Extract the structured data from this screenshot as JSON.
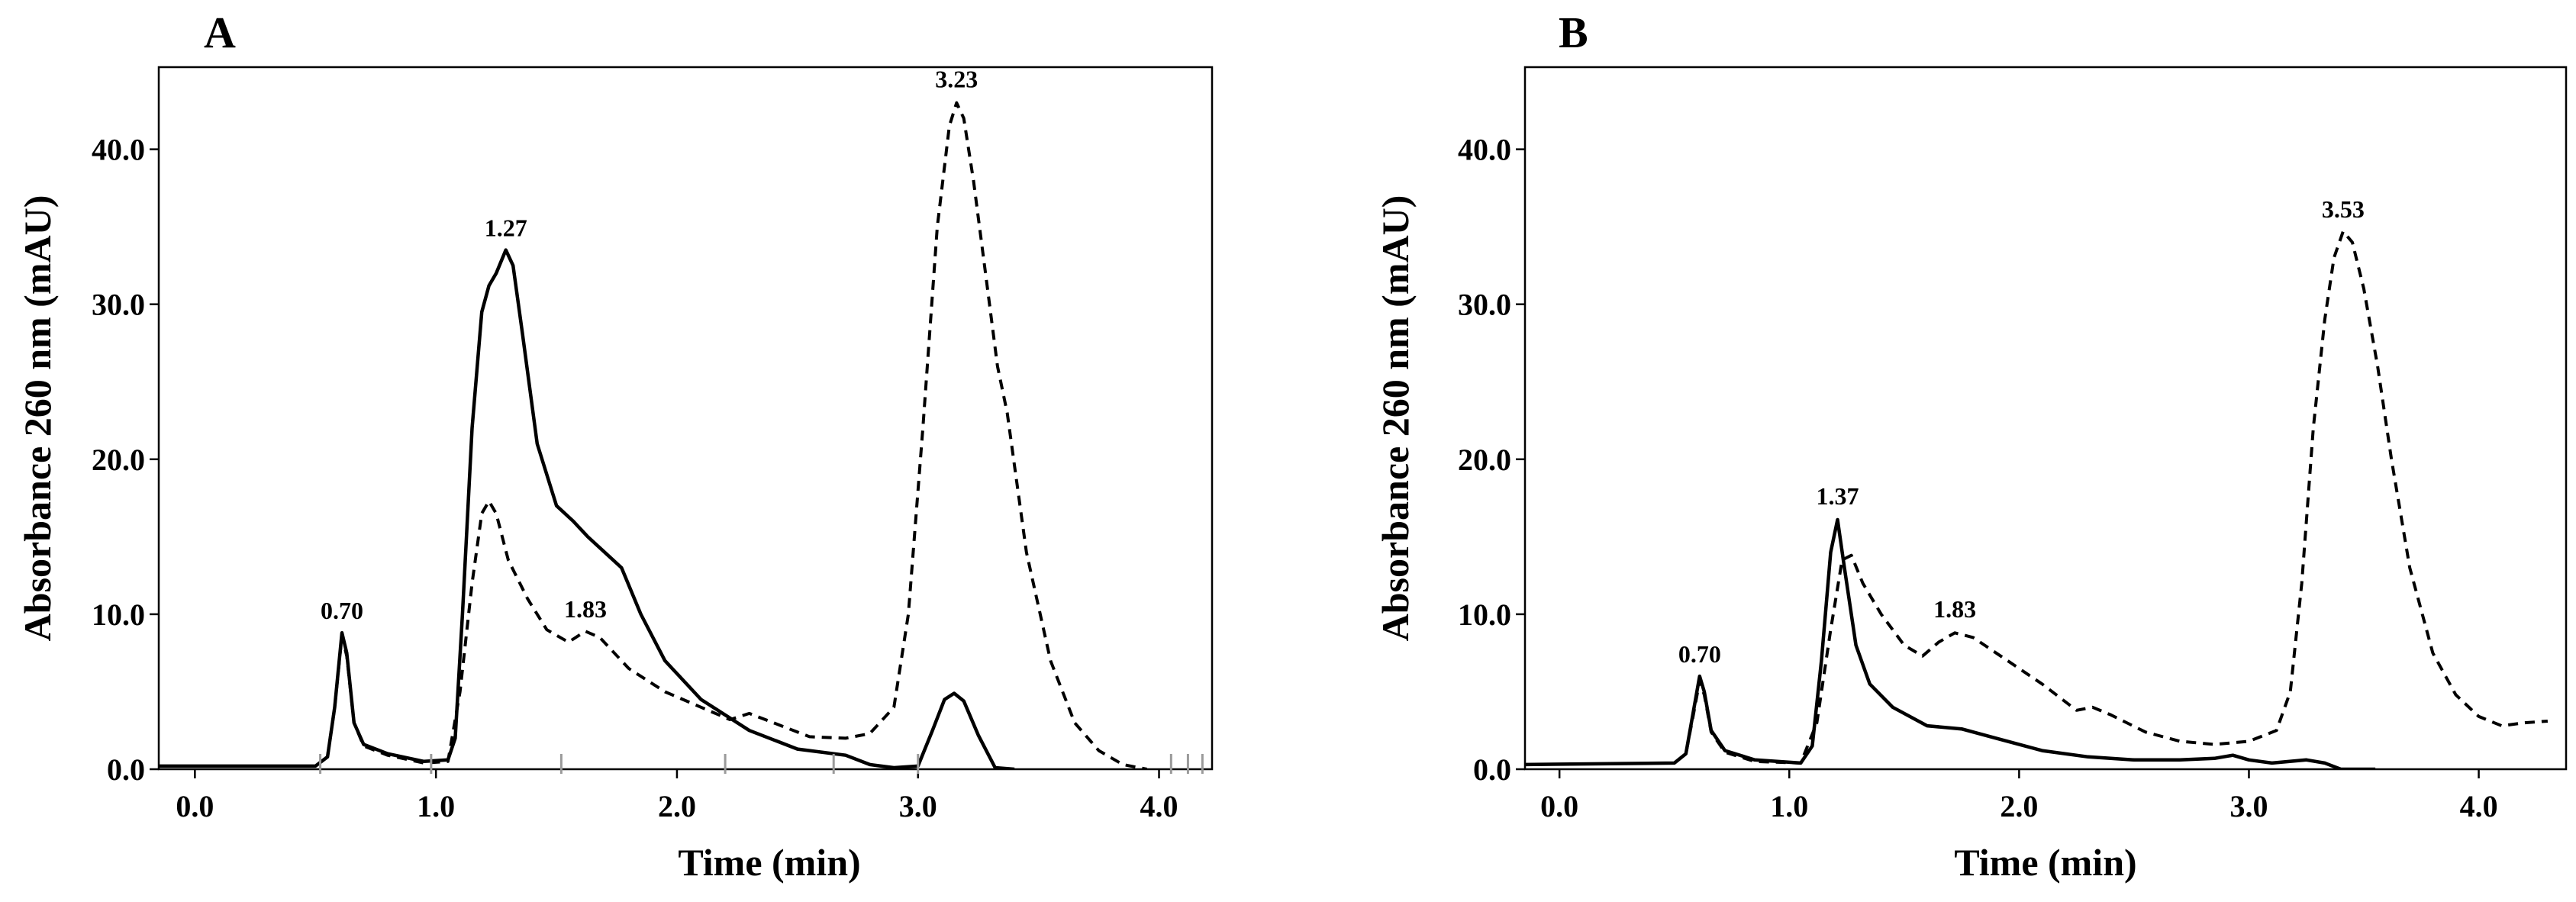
{
  "chart_data": [
    {
      "panel": "A",
      "type": "line",
      "xlabel": "Time (min)",
      "ylabel": "Absorbance 260 nm (mAU)",
      "xlim": [
        -0.15,
        4.22
      ],
      "ylim": [
        0,
        45.3
      ],
      "x_ticks": [
        "0.0",
        "1.0",
        "2.0",
        "3.0",
        "4.0"
      ],
      "y_ticks": [
        "0.0",
        "10.0",
        "20.0",
        "30.0",
        "40.0"
      ],
      "grid": false,
      "series": [
        {
          "name": "solid trace",
          "style": "solid",
          "points": [
            [
              -0.15,
              0.2
            ],
            [
              0.5,
              0.2
            ],
            [
              0.55,
              0.8
            ],
            [
              0.58,
              4
            ],
            [
              0.61,
              8.8
            ],
            [
              0.63,
              7.5
            ],
            [
              0.66,
              3
            ],
            [
              0.7,
              1.6
            ],
            [
              0.8,
              1.0
            ],
            [
              0.95,
              0.5
            ],
            [
              1.05,
              0.6
            ],
            [
              1.08,
              2
            ],
            [
              1.11,
              10
            ],
            [
              1.15,
              22
            ],
            [
              1.19,
              29.5
            ],
            [
              1.22,
              31.2
            ],
            [
              1.25,
              32.0
            ],
            [
              1.29,
              33.5
            ],
            [
              1.32,
              32.5
            ],
            [
              1.36,
              28
            ],
            [
              1.42,
              21
            ],
            [
              1.5,
              17
            ],
            [
              1.57,
              16
            ],
            [
              1.63,
              15
            ],
            [
              1.7,
              14
            ],
            [
              1.77,
              13
            ],
            [
              1.85,
              10
            ],
            [
              1.95,
              7
            ],
            [
              2.1,
              4.5
            ],
            [
              2.3,
              2.5
            ],
            [
              2.5,
              1.3
            ],
            [
              2.7,
              0.9
            ],
            [
              2.8,
              0.3
            ],
            [
              2.9,
              0.1
            ],
            [
              3.0,
              0.2
            ],
            [
              3.06,
              2.5
            ],
            [
              3.11,
              4.5
            ],
            [
              3.15,
              4.9
            ],
            [
              3.19,
              4.4
            ],
            [
              3.25,
              2.2
            ],
            [
              3.32,
              0.1
            ],
            [
              3.4,
              0
            ]
          ]
        },
        {
          "name": "dashed trace",
          "style": "dashed",
          "points": [
            [
              0.5,
              0.2
            ],
            [
              0.55,
              0.8
            ],
            [
              0.58,
              4
            ],
            [
              0.61,
              8.6
            ],
            [
              0.63,
              7.3
            ],
            [
              0.66,
              3
            ],
            [
              0.7,
              1.5
            ],
            [
              0.8,
              0.9
            ],
            [
              0.95,
              0.4
            ],
            [
              1.05,
              0.5
            ],
            [
              1.1,
              5
            ],
            [
              1.15,
              12
            ],
            [
              1.19,
              16.5
            ],
            [
              1.22,
              17.3
            ],
            [
              1.25,
              16.5
            ],
            [
              1.3,
              13.5
            ],
            [
              1.38,
              11
            ],
            [
              1.46,
              9
            ],
            [
              1.55,
              8.2
            ],
            [
              1.62,
              8.9
            ],
            [
              1.68,
              8.5
            ],
            [
              1.8,
              6.5
            ],
            [
              1.95,
              5
            ],
            [
              2.1,
              4
            ],
            [
              2.22,
              3.2
            ],
            [
              2.3,
              3.6
            ],
            [
              2.4,
              3
            ],
            [
              2.55,
              2.1
            ],
            [
              2.7,
              2.0
            ],
            [
              2.8,
              2.3
            ],
            [
              2.9,
              4
            ],
            [
              2.96,
              10
            ],
            [
              3.02,
              22
            ],
            [
              3.08,
              35
            ],
            [
              3.13,
              41.5
            ],
            [
              3.16,
              43.0
            ],
            [
              3.19,
              42
            ],
            [
              3.23,
              38
            ],
            [
              3.28,
              32
            ],
            [
              3.33,
              26
            ],
            [
              3.37,
              23
            ],
            [
              3.45,
              14
            ],
            [
              3.55,
              7
            ],
            [
              3.65,
              3
            ],
            [
              3.75,
              1.2
            ],
            [
              3.85,
              0.3
            ],
            [
              3.95,
              0
            ]
          ]
        }
      ],
      "peak_labels": [
        {
          "text": "0.70",
          "x": 0.61,
          "y": 8.9
        },
        {
          "text": "1.27",
          "x": 1.29,
          "y": 33.6
        },
        {
          "text": "1.83",
          "x": 1.62,
          "y": 9.0
        },
        {
          "text": "3.23",
          "x": 3.16,
          "y": 43.2
        }
      ],
      "integration_marks_x": [
        0.52,
        0.98,
        1.52,
        2.2,
        2.65,
        3.0,
        4.05,
        4.12,
        4.18
      ]
    },
    {
      "panel": "B",
      "type": "line",
      "xlabel": "Time (min)",
      "ylabel": "Absorbance 260 nm (mAU)",
      "xlim": [
        -0.15,
        4.38
      ],
      "ylim": [
        0,
        45.3
      ],
      "x_ticks": [
        "0.0",
        "1.0",
        "2.0",
        "3.0",
        "4.0"
      ],
      "y_ticks": [
        "0.0",
        "10.0",
        "20.0",
        "30.0",
        "40.0"
      ],
      "grid": false,
      "series": [
        {
          "name": "solid trace",
          "style": "solid",
          "points": [
            [
              -0.15,
              0.3
            ],
            [
              0.5,
              0.4
            ],
            [
              0.55,
              1
            ],
            [
              0.58,
              3.5
            ],
            [
              0.61,
              6
            ],
            [
              0.63,
              5
            ],
            [
              0.66,
              2.5
            ],
            [
              0.72,
              1.2
            ],
            [
              0.85,
              0.6
            ],
            [
              1.05,
              0.4
            ],
            [
              1.1,
              1.5
            ],
            [
              1.14,
              7
            ],
            [
              1.18,
              14
            ],
            [
              1.21,
              16.1
            ],
            [
              1.24,
              13
            ],
            [
              1.29,
              8
            ],
            [
              1.35,
              5.5
            ],
            [
              1.45,
              4
            ],
            [
              1.6,
              2.8
            ],
            [
              1.75,
              2.6
            ],
            [
              1.9,
              2.0
            ],
            [
              2.1,
              1.2
            ],
            [
              2.3,
              0.8
            ],
            [
              2.5,
              0.6
            ],
            [
              2.7,
              0.6
            ],
            [
              2.85,
              0.7
            ],
            [
              2.93,
              0.9
            ],
            [
              3.0,
              0.6
            ],
            [
              3.1,
              0.4
            ],
            [
              3.25,
              0.6
            ],
            [
              3.33,
              0.4
            ],
            [
              3.4,
              0
            ],
            [
              3.55,
              0
            ]
          ]
        },
        {
          "name": "dashed trace",
          "style": "dashed",
          "points": [
            [
              0.5,
              0.4
            ],
            [
              0.55,
              1
            ],
            [
              0.58,
              3.3
            ],
            [
              0.61,
              5.7
            ],
            [
              0.63,
              4.8
            ],
            [
              0.66,
              2.4
            ],
            [
              0.72,
              1.1
            ],
            [
              0.85,
              0.5
            ],
            [
              1.05,
              0.4
            ],
            [
              1.12,
              3
            ],
            [
              1.18,
              9
            ],
            [
              1.23,
              13.5
            ],
            [
              1.27,
              13.8
            ],
            [
              1.32,
              12
            ],
            [
              1.4,
              10
            ],
            [
              1.5,
              8
            ],
            [
              1.58,
              7.3
            ],
            [
              1.65,
              8.2
            ],
            [
              1.72,
              8.8
            ],
            [
              1.8,
              8.5
            ],
            [
              1.95,
              7
            ],
            [
              2.1,
              5.5
            ],
            [
              2.25,
              3.8
            ],
            [
              2.32,
              4.0
            ],
            [
              2.4,
              3.5
            ],
            [
              2.55,
              2.4
            ],
            [
              2.7,
              1.8
            ],
            [
              2.85,
              1.6
            ],
            [
              3.0,
              1.8
            ],
            [
              3.12,
              2.5
            ],
            [
              3.18,
              5
            ],
            [
              3.23,
              12
            ],
            [
              3.28,
              22
            ],
            [
              3.33,
              29
            ],
            [
              3.37,
              33
            ],
            [
              3.41,
              34.7
            ],
            [
              3.45,
              34
            ],
            [
              3.5,
              31
            ],
            [
              3.56,
              26
            ],
            [
              3.62,
              20
            ],
            [
              3.7,
              13
            ],
            [
              3.8,
              7.5
            ],
            [
              3.9,
              4.8
            ],
            [
              4.0,
              3.4
            ],
            [
              4.1,
              2.8
            ],
            [
              4.2,
              3.0
            ],
            [
              4.3,
              3.1
            ]
          ]
        }
      ],
      "peak_labels": [
        {
          "text": "0.70",
          "x": 0.61,
          "y": 6.1
        },
        {
          "text": "1.37",
          "x": 1.21,
          "y": 16.3
        },
        {
          "text": "1.83",
          "x": 1.72,
          "y": 9.0
        },
        {
          "text": "3.53",
          "x": 3.41,
          "y": 34.8
        }
      ],
      "integration_marks_x": []
    }
  ]
}
